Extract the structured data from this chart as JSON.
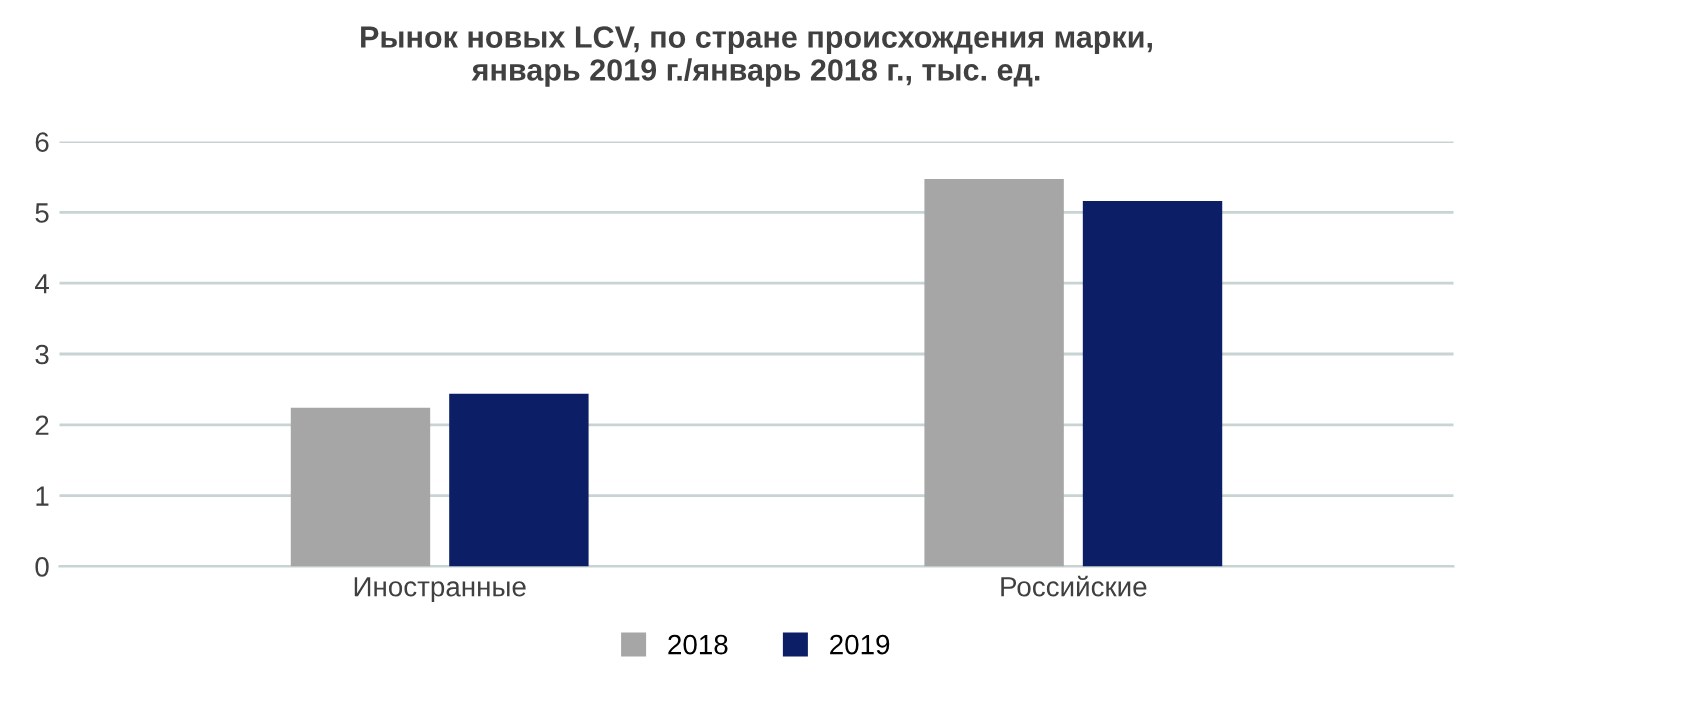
{
  "chart_data": {
    "type": "bar",
    "title": "Рынок новых LCV, по стране происхождения марки,\nянварь 2019 г./январь 2018 г., тыс. ед.",
    "categories": [
      "Иностранные",
      "Российские"
    ],
    "series": [
      {
        "name": "2018",
        "color": "#a6a6a6",
        "values": [
          2.24,
          5.47
        ]
      },
      {
        "name": "2019",
        "color": "#0c1f66",
        "values": [
          2.44,
          5.16
        ]
      }
    ],
    "ylim": [
      0,
      6
    ],
    "yticks": [
      0,
      1,
      2,
      3,
      4,
      5,
      6
    ],
    "grid": "y",
    "legend": "bottom"
  }
}
